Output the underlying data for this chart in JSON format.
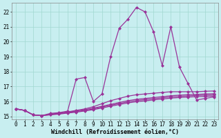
{
  "background_color": "#c8eef0",
  "grid_color": "#a0d8d0",
  "line_color": "#993399",
  "xlim": [
    -0.5,
    23.5
  ],
  "ylim": [
    14.8,
    22.6
  ],
  "xlabel": "Windchill (Refroidissement éolien,°C)",
  "xticks": [
    0,
    1,
    2,
    3,
    4,
    5,
    6,
    7,
    8,
    9,
    10,
    11,
    12,
    13,
    14,
    15,
    16,
    17,
    18,
    19,
    20,
    21,
    22,
    23
  ],
  "yticks": [
    15,
    16,
    17,
    18,
    19,
    20,
    21,
    22
  ],
  "series": [
    [
      15.5,
      15.4,
      15.1,
      15.05,
      15.2,
      15.25,
      15.35,
      17.5,
      17.6,
      16.0,
      16.5,
      19.0,
      20.9,
      21.5,
      22.3,
      22.0,
      20.65,
      18.4,
      21.0,
      18.3,
      17.2,
      16.1,
      16.2,
      16.3
    ],
    [
      15.5,
      15.4,
      15.1,
      15.05,
      15.15,
      15.2,
      15.3,
      15.4,
      15.5,
      15.65,
      15.85,
      16.05,
      16.2,
      16.35,
      16.45,
      16.5,
      16.55,
      16.6,
      16.65,
      16.65,
      16.65,
      16.65,
      16.68,
      16.7
    ],
    [
      15.5,
      15.4,
      15.1,
      15.05,
      15.15,
      15.2,
      15.28,
      15.36,
      15.45,
      15.55,
      15.68,
      15.8,
      15.93,
      16.05,
      16.14,
      16.2,
      16.26,
      16.32,
      16.38,
      16.42,
      16.45,
      16.47,
      16.5,
      16.52
    ],
    [
      15.5,
      15.4,
      15.1,
      15.05,
      15.12,
      15.18,
      15.25,
      15.32,
      15.4,
      15.5,
      15.62,
      15.74,
      15.86,
      15.97,
      16.06,
      16.12,
      16.18,
      16.24,
      16.3,
      16.34,
      16.37,
      16.4,
      16.42,
      16.44
    ],
    [
      15.5,
      15.4,
      15.1,
      15.05,
      15.1,
      15.15,
      15.22,
      15.28,
      15.36,
      15.45,
      15.56,
      15.68,
      15.79,
      15.9,
      15.98,
      16.04,
      16.1,
      16.16,
      16.22,
      16.26,
      16.29,
      16.32,
      16.34,
      16.36
    ]
  ],
  "marker": "D",
  "markersize": 2,
  "linewidth": 0.9,
  "tick_fontsize": 5.5,
  "xlabel_fontsize": 6.0
}
